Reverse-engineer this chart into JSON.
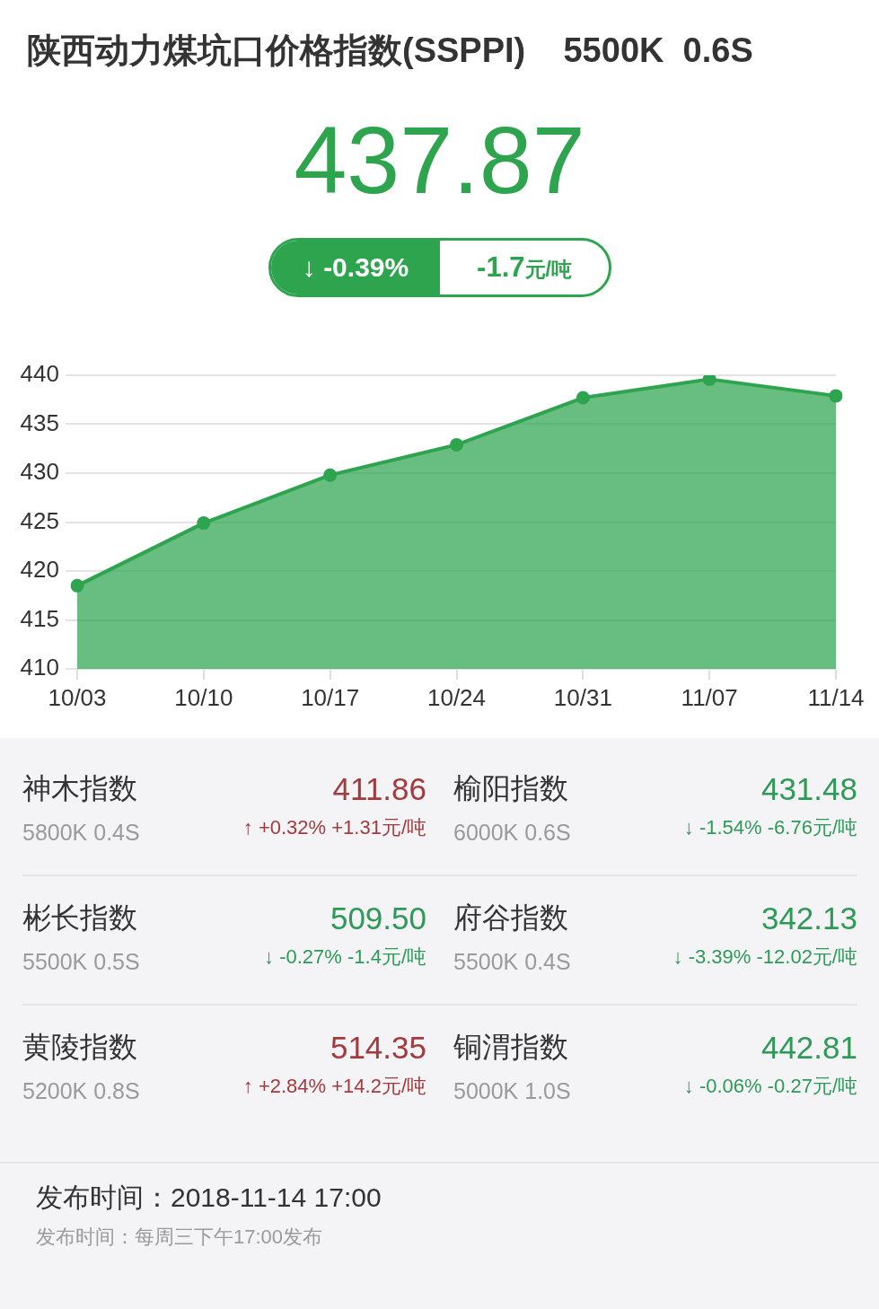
{
  "chart_data": [
    {
      "type": "area",
      "title": "陕西动力煤坑口价格指数(SSPPI)    5500K  0.6S",
      "annotations": [
        "437.87",
        "↓ -0.39%",
        "-1.7元/吨"
      ],
      "categories": [
        "10/03",
        "10/10",
        "10/17",
        "10/24",
        "10/31",
        "11/07",
        "11/14"
      ],
      "values": [
        418.5,
        424.9,
        429.8,
        432.9,
        437.7,
        439.6,
        437.9
      ],
      "color": "#2ea44f",
      "ylim": [
        410,
        440
      ],
      "yticks": [
        410,
        415,
        420,
        425,
        430,
        435,
        440
      ],
      "grid": "y",
      "marker": "circle",
      "line_style": "solid"
    },
    {
      "type": "other",
      "annotations": [
        "神木指数",
        "5800K 0.4S",
        "411.86",
        "↑ +0.32% +1.31元/吨",
        "榆阳指数",
        "6000K 0.6S",
        "431.48",
        "↓ -1.54% -6.76元/吨",
        "彬长指数",
        "5500K 0.5S",
        "509.50",
        "↓ -0.27% -1.4元/吨",
        "府谷指数",
        "5500K 0.4S",
        "342.13",
        "↓ -3.39% -12.02元/吨",
        "黄陵指数",
        "5200K 0.8S",
        "514.35",
        "↑ +2.84% +14.2元/吨",
        "铜渭指数",
        "5000K 1.0S",
        "442.81",
        "↓ -0.06% -0.27元/吨",
        "发布时间：2018-11-14 17:00",
        "发布时间：每周三下午17:00发布"
      ],
      "colors": [
        "#a23b3e",
        "#2e9a57",
        "#2e9a57",
        "#2e9a57",
        "#a23b3e",
        "#2e9a57"
      ]
    }
  ]
}
